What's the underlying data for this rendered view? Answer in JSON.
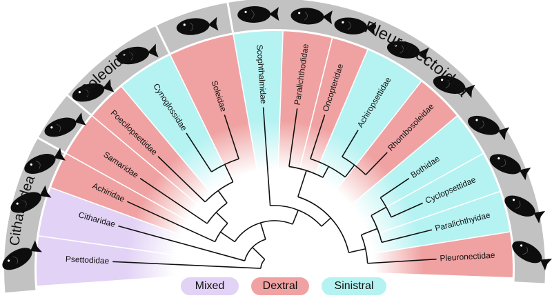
{
  "clades": [
    {
      "name": "Psettodidae",
      "color": "mixed"
    },
    {
      "name": "Citharidae",
      "color": "mixed"
    },
    {
      "name": "Achiridae",
      "color": "dextral"
    },
    {
      "name": "Samaridae",
      "color": "dextral"
    },
    {
      "name": "Poecilopsettidae",
      "color": "dextral"
    },
    {
      "name": "Cynoglossidae",
      "color": "sinistral"
    },
    {
      "name": "Soleidae",
      "color": "dextral"
    },
    {
      "name": "Scophthalmidae",
      "color": "sinistral"
    },
    {
      "name": "Paralichthodidae",
      "color": "dextral"
    },
    {
      "name": "Oncopteridae",
      "color": "dextral"
    },
    {
      "name": "Achiropsettidae",
      "color": "sinistral"
    },
    {
      "name": "Rhombosoleidae",
      "color": "dextral"
    },
    {
      "name": "Bothidae",
      "color": "sinistral"
    },
    {
      "name": "Cyclopsettidae",
      "color": "sinistral"
    },
    {
      "name": "Paralichthyidae",
      "color": "sinistral"
    },
    {
      "name": "Pleuronectidae",
      "color": "dextral"
    }
  ],
  "groups": [
    {
      "label": "Citharoidea"
    },
    {
      "label": "Soleoidea"
    },
    {
      "label": "Pleuronectoidea"
    }
  ],
  "legend": [
    {
      "label": "Mixed",
      "color": "#e2d2f6"
    },
    {
      "label": "Dextral",
      "color": "#f0a2a2"
    },
    {
      "label": "Sinistral",
      "color": "#b5f2f2"
    }
  ],
  "colors": {
    "mixed": "#e2d2f6",
    "dextral": "#f0a2a2",
    "sinistral": "#b5f2f2",
    "band": "#c2c2c2",
    "tree": "#111111",
    "fish": "#0d0d0d"
  }
}
